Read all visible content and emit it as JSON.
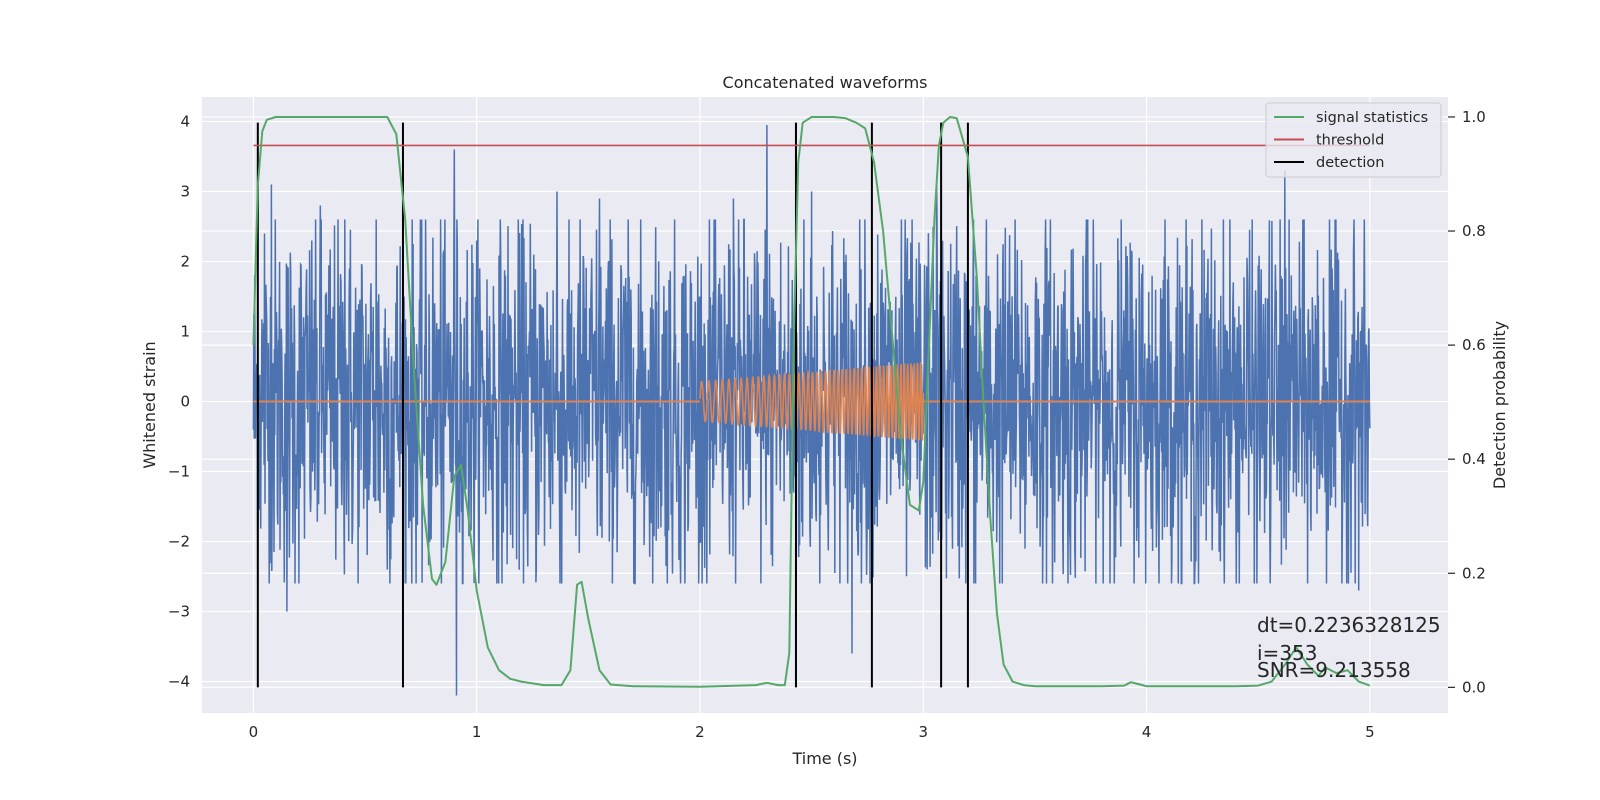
{
  "chart_data": {
    "type": "line",
    "title": "Concatenated waveforms",
    "xlabel": "Time (s)",
    "ylabel_left": "Whitened strain",
    "ylabel_right": "Detection probability",
    "xlim": [
      -0.23,
      5.35
    ],
    "ylim_left": [
      -4.45,
      4.35
    ],
    "ylim_right": [
      -0.045,
      1.035
    ],
    "x_ticks": [
      {
        "value": 0,
        "label": "0"
      },
      {
        "value": 1,
        "label": "1"
      },
      {
        "value": 2,
        "label": "2"
      },
      {
        "value": 3,
        "label": "3"
      },
      {
        "value": 4,
        "label": "4"
      },
      {
        "value": 5,
        "label": "5"
      }
    ],
    "y_ticks_left": [
      {
        "value": 4,
        "label": "4"
      },
      {
        "value": 3,
        "label": "3"
      },
      {
        "value": 2,
        "label": "2"
      },
      {
        "value": 1,
        "label": "1"
      },
      {
        "value": 0,
        "label": "0"
      },
      {
        "value": -1,
        "label": "−1"
      },
      {
        "value": -2,
        "label": "−2"
      },
      {
        "value": -3,
        "label": "−3"
      },
      {
        "value": -4,
        "label": "−4"
      }
    ],
    "y_ticks_right": [
      {
        "value": 1.0,
        "label": "1.0"
      },
      {
        "value": 0.8,
        "label": "0.8"
      },
      {
        "value": 0.6,
        "label": "0.6"
      },
      {
        "value": 0.4,
        "label": "0.4"
      },
      {
        "value": 0.2,
        "label": "0.2"
      },
      {
        "value": 0.0,
        "label": "0.0"
      }
    ],
    "grid": true,
    "background": "#eaeaf2",
    "legend": {
      "placement": "top-right",
      "entries": [
        {
          "label": "signal statistics",
          "color": "#55a868"
        },
        {
          "label": "threshold",
          "color": "#c44e52"
        },
        {
          "label": "detection",
          "color": "#000000"
        }
      ]
    },
    "series": [
      {
        "kind": "noise",
        "axis": "left",
        "color": "#4c72b0",
        "x_range": [
          0,
          5
        ],
        "typical_amplitude": 1.3,
        "peak_values": [
          {
            "x": 0.05,
            "y": 2.4
          },
          {
            "x": 0.08,
            "y": 3.1
          },
          {
            "x": 0.15,
            "y": -2.2
          },
          {
            "x": 0.15,
            "y": 2.8
          },
          {
            "x": 0.15,
            "y": -3.0
          },
          {
            "x": 0.3,
            "y": 2.8
          },
          {
            "x": 0.41,
            "y": 2.6
          },
          {
            "x": 0.55,
            "y": 2.6
          },
          {
            "x": 0.6,
            "y": -2.4
          },
          {
            "x": 0.9,
            "y": 3.6
          },
          {
            "x": 0.91,
            "y": -4.2
          },
          {
            "x": 1.36,
            "y": 3.0
          },
          {
            "x": 1.55,
            "y": 2.9
          },
          {
            "x": 2.15,
            "y": 2.9
          },
          {
            "x": 2.3,
            "y": 3.95
          },
          {
            "x": 2.5,
            "y": 3.0
          },
          {
            "x": 2.68,
            "y": -3.6
          },
          {
            "x": 3.06,
            "y": 3.1
          },
          {
            "x": 4.62,
            "y": 3.3
          },
          {
            "x": 4.82,
            "y": 2.6
          },
          {
            "x": 4.95,
            "y": -2.7
          }
        ]
      },
      {
        "kind": "chirp",
        "axis": "left",
        "color": "#dd8452",
        "x_range": [
          2.0,
          3.0
        ],
        "amplitude_start": 0.28,
        "amplitude_end": 0.56,
        "frequency_start_hz": 30,
        "frequency_end_hz": 70,
        "baseline": 0
      },
      {
        "name": "signal statistics",
        "axis": "right",
        "color": "#55a868",
        "x": [
          0.0,
          0.02,
          0.04,
          0.06,
          0.1,
          0.2,
          0.6,
          0.64,
          0.68,
          0.72,
          0.76,
          0.8,
          0.82,
          0.86,
          0.9,
          0.93,
          0.96,
          1.0,
          1.05,
          1.1,
          1.15,
          1.2,
          1.3,
          1.38,
          1.42,
          1.45,
          1.47,
          1.5,
          1.55,
          1.6,
          1.7,
          2.0,
          2.25,
          2.3,
          2.35,
          2.38,
          2.4,
          2.42,
          2.44,
          2.46,
          2.5,
          2.6,
          2.65,
          2.7,
          2.74,
          2.78,
          2.82,
          2.86,
          2.9,
          2.94,
          2.98,
          3.0,
          3.02,
          3.05,
          3.07,
          3.09,
          3.12,
          3.15,
          3.2,
          3.24,
          3.27,
          3.3,
          3.33,
          3.36,
          3.4,
          3.45,
          3.5,
          3.8,
          3.9,
          3.93,
          3.96,
          4.0,
          4.4,
          4.5,
          4.56,
          4.62,
          4.67,
          4.72,
          4.77,
          4.8,
          4.85,
          4.9,
          4.95,
          5.0
        ],
        "y": [
          0.6,
          0.88,
          0.975,
          0.995,
          1.0,
          1.0,
          1.0,
          0.97,
          0.82,
          0.55,
          0.32,
          0.19,
          0.18,
          0.22,
          0.37,
          0.39,
          0.31,
          0.17,
          0.07,
          0.03,
          0.015,
          0.01,
          0.004,
          0.004,
          0.03,
          0.18,
          0.185,
          0.12,
          0.03,
          0.005,
          0.002,
          0.001,
          0.004,
          0.008,
          0.004,
          0.004,
          0.06,
          0.6,
          0.92,
          0.99,
          1.0,
          1.0,
          0.998,
          0.99,
          0.98,
          0.92,
          0.8,
          0.62,
          0.44,
          0.32,
          0.31,
          0.36,
          0.55,
          0.82,
          0.95,
          0.99,
          1.0,
          0.998,
          0.93,
          0.72,
          0.5,
          0.3,
          0.13,
          0.04,
          0.01,
          0.004,
          0.002,
          0.002,
          0.003,
          0.009,
          0.006,
          0.002,
          0.002,
          0.003,
          0.01,
          0.04,
          0.07,
          0.04,
          0.02,
          0.035,
          0.025,
          0.03,
          0.01,
          0.003
        ]
      },
      {
        "name": "threshold",
        "axis": "right",
        "color": "#c44e52",
        "x": [
          0,
          5
        ],
        "y": [
          0.95,
          0.95
        ]
      }
    ],
    "detections": {
      "color": "#000000",
      "x": [
        0.02,
        0.67,
        2.43,
        2.77,
        3.08,
        3.2
      ]
    },
    "annotations": [
      "dt=0.2236328125",
      " i=353",
      "SNR=9.213558"
    ]
  }
}
